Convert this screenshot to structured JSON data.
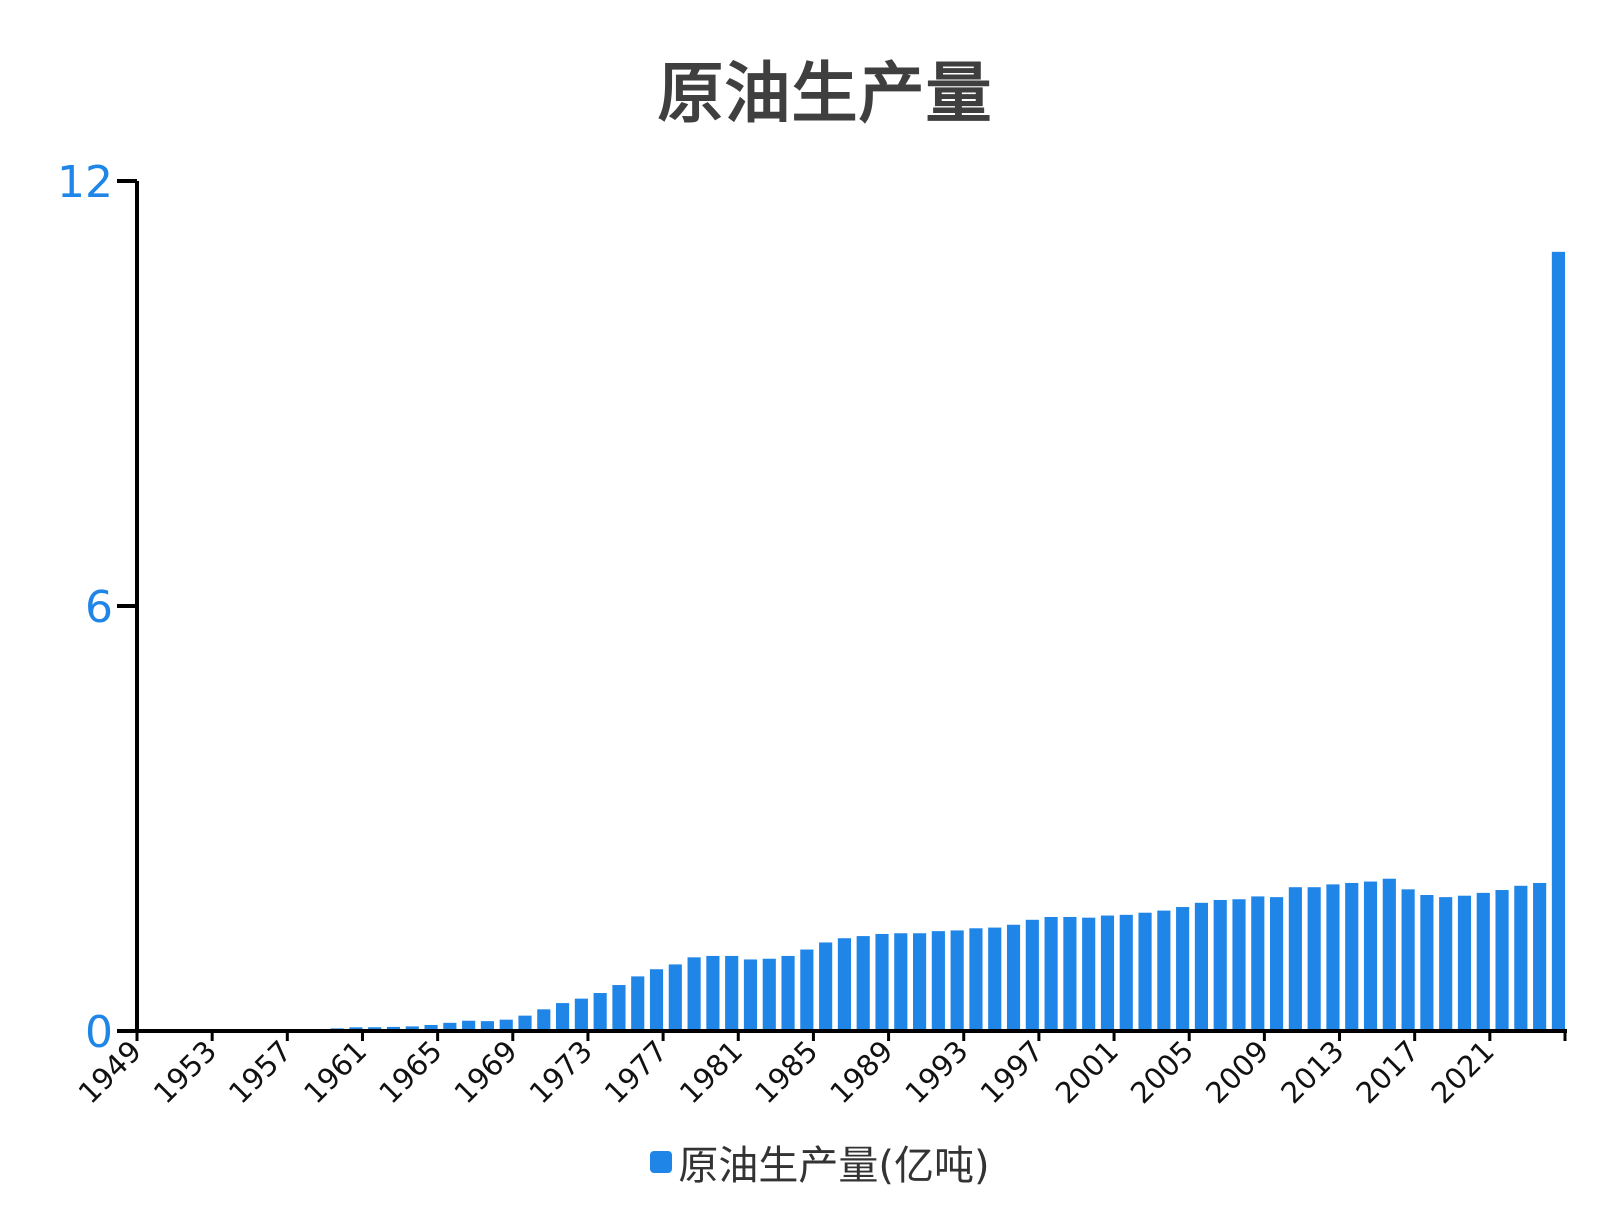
{
  "chart_data": {
    "type": "bar",
    "title": "原油生产量",
    "xlabel": "",
    "ylabel": "",
    "ylim": [
      0,
      12
    ],
    "yticks": [
      "0",
      "6",
      "12"
    ],
    "xticklabels": [
      "1949",
      "1953",
      "1957",
      "1961",
      "1965",
      "1969",
      "1973",
      "1977",
      "1981",
      "1985",
      "1989",
      "1993",
      "1997",
      "2001",
      "2005",
      "2009",
      "2013",
      "2017",
      "2021"
    ],
    "categories": [
      "1949",
      "1950",
      "1951",
      "1952",
      "1953",
      "1954",
      "1955",
      "1956",
      "1957",
      "1958",
      "1959",
      "1960",
      "1961",
      "1962",
      "1963",
      "1964",
      "1965",
      "1966",
      "1967",
      "1968",
      "1969",
      "1970",
      "1971",
      "1972",
      "1973",
      "1974",
      "1975",
      "1976",
      "1977",
      "1978",
      "1979",
      "1980",
      "1981",
      "1982",
      "1983",
      "1984",
      "1985",
      "1986",
      "1987",
      "1988",
      "1989",
      "1990",
      "1991",
      "1992",
      "1993",
      "1994",
      "1995",
      "1996",
      "1997",
      "1998",
      "1999",
      "2000",
      "2001",
      "2002",
      "2003",
      "2004",
      "2005",
      "2006",
      "2007",
      "2008",
      "2009",
      "2010",
      "2011",
      "2012",
      "2013",
      "2014",
      "2015",
      "2016",
      "2017",
      "2018",
      "2019",
      "2020",
      "2021",
      "2022",
      "2023",
      "2024"
    ],
    "series": [
      {
        "name": "原油生产量(亿吨)",
        "values": [
          0.001,
          0.002,
          0.003,
          0.004,
          0.006,
          0.008,
          0.01,
          0.012,
          0.015,
          0.023,
          0.037,
          0.052,
          0.053,
          0.058,
          0.065,
          0.085,
          0.115,
          0.145,
          0.139,
          0.16,
          0.217,
          0.306,
          0.394,
          0.457,
          0.536,
          0.649,
          0.771,
          0.872,
          0.94,
          1.04,
          1.06,
          1.06,
          1.01,
          1.02,
          1.06,
          1.15,
          1.25,
          1.31,
          1.34,
          1.37,
          1.38,
          1.38,
          1.41,
          1.42,
          1.45,
          1.46,
          1.5,
          1.57,
          1.61,
          1.61,
          1.6,
          1.63,
          1.64,
          1.67,
          1.7,
          1.75,
          1.81,
          1.85,
          1.86,
          1.9,
          1.89,
          2.03,
          2.03,
          2.07,
          2.09,
          2.11,
          2.15,
          2.0,
          1.92,
          1.89,
          1.91,
          1.95,
          1.99,
          2.05,
          2.09,
          11.0
        ]
      }
    ],
    "legend": "bottom-center",
    "grid": false,
    "colors": {
      "bar": "#1f86e8",
      "ytick": "#1f86e8",
      "axis": "#000000"
    }
  }
}
